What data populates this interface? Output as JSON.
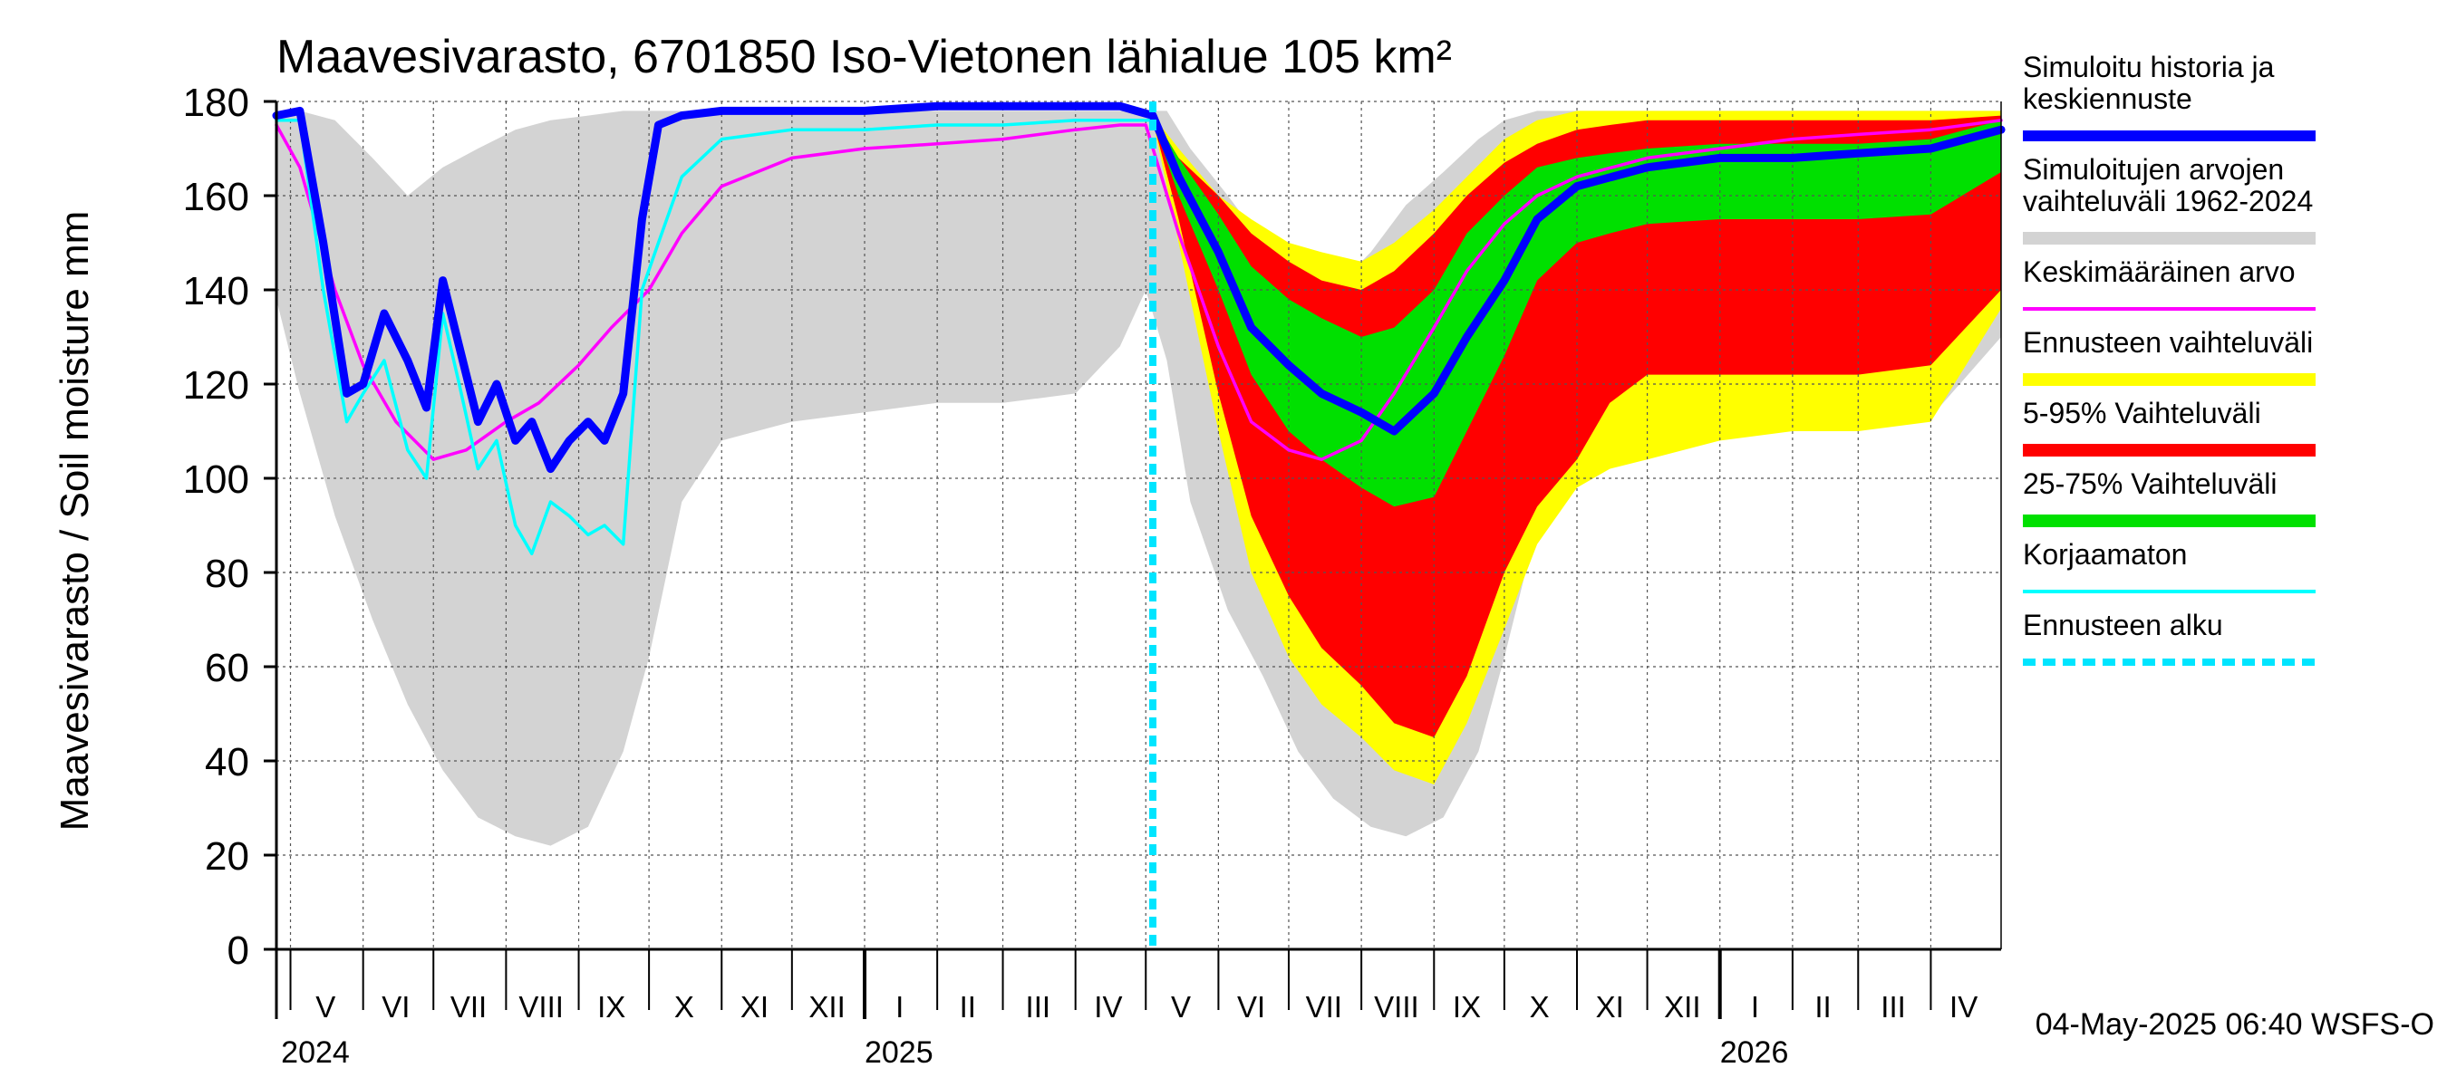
{
  "chart_data": {
    "type": "area",
    "title": "Maavesivarasto, 6701850 Iso-Vietonen lähialue 105 km²",
    "ylabel": "Maavesivarasto / Soil moisture   mm",
    "ylim": [
      0,
      180
    ],
    "yticks": [
      0,
      20,
      40,
      60,
      80,
      100,
      120,
      140,
      160,
      180
    ],
    "xlim": [
      "2024-04-25",
      "2026-05-01"
    ],
    "grid": true,
    "legend_position": "right",
    "month_labels": [
      {
        "label": "V",
        "date": "2024-05-16"
      },
      {
        "label": "VI",
        "date": "2024-06-15"
      },
      {
        "label": "VII",
        "date": "2024-07-16"
      },
      {
        "label": "VIII",
        "date": "2024-08-16"
      },
      {
        "label": "IX",
        "date": "2024-09-15"
      },
      {
        "label": "X",
        "date": "2024-10-16"
      },
      {
        "label": "XI",
        "date": "2024-11-15"
      },
      {
        "label": "XII",
        "date": "2024-12-16"
      },
      {
        "label": "I",
        "date": "2025-01-16"
      },
      {
        "label": "II",
        "date": "2025-02-14"
      },
      {
        "label": "III",
        "date": "2025-03-16"
      },
      {
        "label": "IV",
        "date": "2025-04-15"
      },
      {
        "label": "V",
        "date": "2025-05-16"
      },
      {
        "label": "VI",
        "date": "2025-06-15"
      },
      {
        "label": "VII",
        "date": "2025-07-16"
      },
      {
        "label": "VIII",
        "date": "2025-08-16"
      },
      {
        "label": "IX",
        "date": "2025-09-15"
      },
      {
        "label": "X",
        "date": "2025-10-16"
      },
      {
        "label": "XI",
        "date": "2025-11-15"
      },
      {
        "label": "XII",
        "date": "2025-12-16"
      },
      {
        "label": "I",
        "date": "2026-01-16"
      },
      {
        "label": "II",
        "date": "2026-02-14"
      },
      {
        "label": "III",
        "date": "2026-03-16"
      },
      {
        "label": "IV",
        "date": "2026-04-15"
      }
    ],
    "year_labels": [
      {
        "label": "2024",
        "date": "2024-04-27"
      },
      {
        "label": "2025",
        "date": "2025-01-01"
      },
      {
        "label": "2026",
        "date": "2026-01-01"
      }
    ],
    "forecast_start": "2025-05-04",
    "timestamp": "04-May-2025 06:40 WSFS-O",
    "colors": {
      "history_range": "#d3d3d3",
      "forecast_range": "#ffff00",
      "p5_95": "#ff0000",
      "p25_75": "#00e000",
      "simulated": "#0000ff",
      "mean": "#ff00ff",
      "uncorrected": "#00ffff",
      "forecast_start": "#00e5ff"
    },
    "legend": [
      {
        "label": "Simuloitu historia ja keskiennuste",
        "lines": [
          "Simuloitu historia ja",
          "keskiennuste"
        ],
        "color": "#0000ff",
        "style": "thick"
      },
      {
        "label": "Simuloitujen arvojen vaihteluväli 1962-2024",
        "lines": [
          "Simuloitujen arvojen",
          "vaihteluväli 1962-2024"
        ],
        "color": "#d3d3d3",
        "style": "band"
      },
      {
        "label": "Keskimääräinen arvo",
        "lines": [
          "Keskimääräinen arvo"
        ],
        "color": "#ff00ff",
        "style": "line"
      },
      {
        "label": "Ennusteen vaihteluväli",
        "lines": [
          "Ennusteen vaihteluväli"
        ],
        "color": "#ffff00",
        "style": "band"
      },
      {
        "label": "5-95% Vaihteluväli",
        "lines": [
          "5-95% Vaihteluväli"
        ],
        "color": "#ff0000",
        "style": "band"
      },
      {
        "label": "25-75% Vaihteluväli",
        "lines": [
          "25-75% Vaihteluväli"
        ],
        "color": "#00e000",
        "style": "band"
      },
      {
        "label": "Korjaamaton",
        "lines": [
          "Korjaamaton"
        ],
        "color": "#00ffff",
        "style": "line"
      },
      {
        "label": "Ennusteen alku",
        "lines": [
          "Ennusteen alku"
        ],
        "color": "#00e5ff",
        "style": "dashed"
      }
    ],
    "series": [
      {
        "name": "Simuloitujen arvojen vaihteluväli 1962-2024",
        "kind": "band",
        "x": [
          "2024-04-25",
          "2024-05-05",
          "2024-05-20",
          "2024-06-05",
          "2024-06-20",
          "2024-07-05",
          "2024-07-20",
          "2024-08-05",
          "2024-08-20",
          "2024-09-05",
          "2024-09-20",
          "2024-10-01",
          "2024-10-15",
          "2024-11-01",
          "2024-12-01",
          "2025-01-01",
          "2025-02-01",
          "2025-03-01",
          "2025-04-01",
          "2025-04-20",
          "2025-05-01",
          "2025-05-10",
          "2025-05-20",
          "2025-06-05",
          "2025-06-20",
          "2025-07-05",
          "2025-07-20",
          "2025-08-05",
          "2025-08-20",
          "2025-09-05",
          "2025-09-20",
          "2025-10-01",
          "2025-10-15",
          "2025-11-01",
          "2025-12-01",
          "2026-01-01",
          "2026-02-01",
          "2026-03-01",
          "2026-04-01",
          "2026-05-01"
        ],
        "low": [
          138,
          118,
          92,
          70,
          52,
          38,
          28,
          24,
          22,
          26,
          42,
          62,
          95,
          108,
          112,
          114,
          116,
          116,
          118,
          128,
          140,
          125,
          95,
          72,
          58,
          42,
          32,
          26,
          24,
          28,
          42,
          62,
          90,
          104,
          108,
          110,
          112,
          112,
          113,
          130
        ],
        "high": [
          178,
          178,
          176,
          168,
          160,
          166,
          170,
          174,
          176,
          177,
          178,
          178,
          178,
          178,
          178,
          178,
          178,
          178,
          178,
          178,
          178,
          178,
          170,
          160,
          150,
          140,
          140,
          148,
          158,
          165,
          172,
          176,
          178,
          178,
          178,
          178,
          178,
          178,
          178,
          178
        ]
      },
      {
        "name": "Ennusteen vaihteluväli",
        "kind": "band",
        "x": [
          "2025-05-04",
          "2025-05-15",
          "2025-06-01",
          "2025-06-15",
          "2025-07-01",
          "2025-07-15",
          "2025-08-01",
          "2025-08-15",
          "2025-09-01",
          "2025-09-15",
          "2025-10-01",
          "2025-10-15",
          "2025-11-01",
          "2025-11-15",
          "2025-12-01",
          "2026-01-01",
          "2026-02-01",
          "2026-03-01",
          "2026-04-01",
          "2026-05-01"
        ],
        "low": [
          176,
          150,
          110,
          80,
          62,
          52,
          45,
          38,
          35,
          48,
          68,
          86,
          98,
          102,
          104,
          108,
          110,
          110,
          112,
          136
        ],
        "high": [
          177,
          170,
          160,
          155,
          150,
          148,
          146,
          150,
          157,
          164,
          172,
          176,
          178,
          178,
          178,
          178,
          178,
          178,
          178,
          178
        ]
      },
      {
        "name": "5-95% Vaihteluväli",
        "kind": "band",
        "x": [
          "2025-05-04",
          "2025-05-15",
          "2025-06-01",
          "2025-06-15",
          "2025-07-01",
          "2025-07-15",
          "2025-08-01",
          "2025-08-15",
          "2025-09-01",
          "2025-09-15",
          "2025-10-01",
          "2025-10-15",
          "2025-11-01",
          "2025-11-15",
          "2025-12-01",
          "2026-01-01",
          "2026-02-01",
          "2026-03-01",
          "2026-04-01",
          "2026-05-01"
        ],
        "low": [
          176,
          155,
          118,
          92,
          75,
          64,
          56,
          48,
          45,
          58,
          80,
          94,
          104,
          116,
          122,
          122,
          122,
          122,
          124,
          140
        ],
        "high": [
          177,
          168,
          160,
          152,
          146,
          142,
          140,
          144,
          152,
          160,
          167,
          171,
          174,
          175,
          176,
          176,
          176,
          176,
          176,
          177
        ]
      },
      {
        "name": "25-75% Vaihteluväli",
        "kind": "band",
        "x": [
          "2025-05-04",
          "2025-05-15",
          "2025-06-01",
          "2025-06-15",
          "2025-07-01",
          "2025-07-15",
          "2025-08-01",
          "2025-08-15",
          "2025-09-01",
          "2025-09-15",
          "2025-10-01",
          "2025-10-15",
          "2025-11-01",
          "2025-11-15",
          "2025-12-01",
          "2026-01-01",
          "2026-02-01",
          "2026-03-01",
          "2026-04-01",
          "2026-05-01"
        ],
        "low": [
          176,
          160,
          140,
          122,
          110,
          104,
          98,
          94,
          96,
          110,
          126,
          142,
          150,
          152,
          154,
          155,
          155,
          155,
          156,
          165
        ],
        "high": [
          177,
          168,
          156,
          145,
          138,
          134,
          130,
          132,
          140,
          152,
          160,
          166,
          168,
          169,
          170,
          171,
          171,
          171,
          172,
          176
        ]
      },
      {
        "name": "Keskimääräinen arvo",
        "kind": "line",
        "x": [
          "2024-04-25",
          "2024-05-05",
          "2024-05-20",
          "2024-06-01",
          "2024-06-15",
          "2024-07-01",
          "2024-07-15",
          "2024-08-01",
          "2024-08-15",
          "2024-09-01",
          "2024-09-15",
          "2024-10-01",
          "2024-10-15",
          "2024-11-01",
          "2024-12-01",
          "2025-01-01",
          "2025-02-01",
          "2025-03-01",
          "2025-04-01",
          "2025-04-20",
          "2025-05-01",
          "2025-05-15",
          "2025-06-01",
          "2025-06-15",
          "2025-07-01",
          "2025-07-15",
          "2025-08-01",
          "2025-08-15",
          "2025-09-01",
          "2025-09-15",
          "2025-10-01",
          "2025-10-15",
          "2025-11-01",
          "2025-12-01",
          "2026-01-01",
          "2026-02-01",
          "2026-03-01",
          "2026-04-01",
          "2026-05-01"
        ],
        "y": [
          175,
          166,
          140,
          124,
          112,
          104,
          106,
          112,
          116,
          124,
          132,
          140,
          152,
          162,
          168,
          170,
          171,
          172,
          174,
          175,
          175,
          152,
          128,
          112,
          106,
          104,
          108,
          118,
          132,
          144,
          154,
          160,
          164,
          168,
          170,
          172,
          173,
          174,
          176
        ]
      },
      {
        "name": "Simuloitu historia ja keskiennuste",
        "kind": "line",
        "x": [
          "2024-04-25",
          "2024-05-05",
          "2024-05-15",
          "2024-05-25",
          "2024-06-01",
          "2024-06-10",
          "2024-06-20",
          "2024-06-28",
          "2024-07-05",
          "2024-07-12",
          "2024-07-20",
          "2024-07-28",
          "2024-08-05",
          "2024-08-12",
          "2024-08-20",
          "2024-08-28",
          "2024-09-05",
          "2024-09-12",
          "2024-09-20",
          "2024-09-28",
          "2024-10-05",
          "2024-10-15",
          "2024-11-01",
          "2024-12-01",
          "2025-01-01",
          "2025-02-01",
          "2025-03-01",
          "2025-04-01",
          "2025-04-20",
          "2025-05-04",
          "2025-05-15",
          "2025-06-01",
          "2025-06-15",
          "2025-07-01",
          "2025-07-15",
          "2025-08-01",
          "2025-08-15",
          "2025-09-01",
          "2025-09-15",
          "2025-10-01",
          "2025-10-15",
          "2025-11-01",
          "2025-12-01",
          "2026-01-01",
          "2026-02-01",
          "2026-03-01",
          "2026-04-01",
          "2026-05-01"
        ],
        "y": [
          177,
          178,
          150,
          118,
          120,
          135,
          125,
          115,
          142,
          128,
          112,
          120,
          108,
          112,
          102,
          108,
          112,
          108,
          118,
          155,
          175,
          177,
          178,
          178,
          178,
          179,
          179,
          179,
          179,
          177,
          164,
          148,
          132,
          124,
          118,
          114,
          110,
          118,
          130,
          142,
          155,
          162,
          166,
          168,
          168,
          169,
          170,
          174
        ]
      },
      {
        "name": "Korjaamaton",
        "kind": "line",
        "x": [
          "2024-04-25",
          "2024-05-05",
          "2024-05-15",
          "2024-05-25",
          "2024-06-01",
          "2024-06-10",
          "2024-06-20",
          "2024-06-28",
          "2024-07-05",
          "2024-07-12",
          "2024-07-20",
          "2024-07-28",
          "2024-08-05",
          "2024-08-12",
          "2024-08-20",
          "2024-08-28",
          "2024-09-05",
          "2024-09-12",
          "2024-09-20",
          "2024-09-28",
          "2024-10-05",
          "2024-10-15",
          "2024-11-01",
          "2024-12-01",
          "2025-01-01",
          "2025-02-01",
          "2025-03-01",
          "2025-04-01",
          "2025-04-20",
          "2025-05-04"
        ],
        "y": [
          176,
          176,
          140,
          112,
          118,
          125,
          106,
          100,
          135,
          120,
          102,
          108,
          90,
          84,
          95,
          92,
          88,
          90,
          86,
          140,
          150,
          164,
          172,
          174,
          174,
          175,
          175,
          176,
          176,
          176
        ]
      }
    ]
  }
}
